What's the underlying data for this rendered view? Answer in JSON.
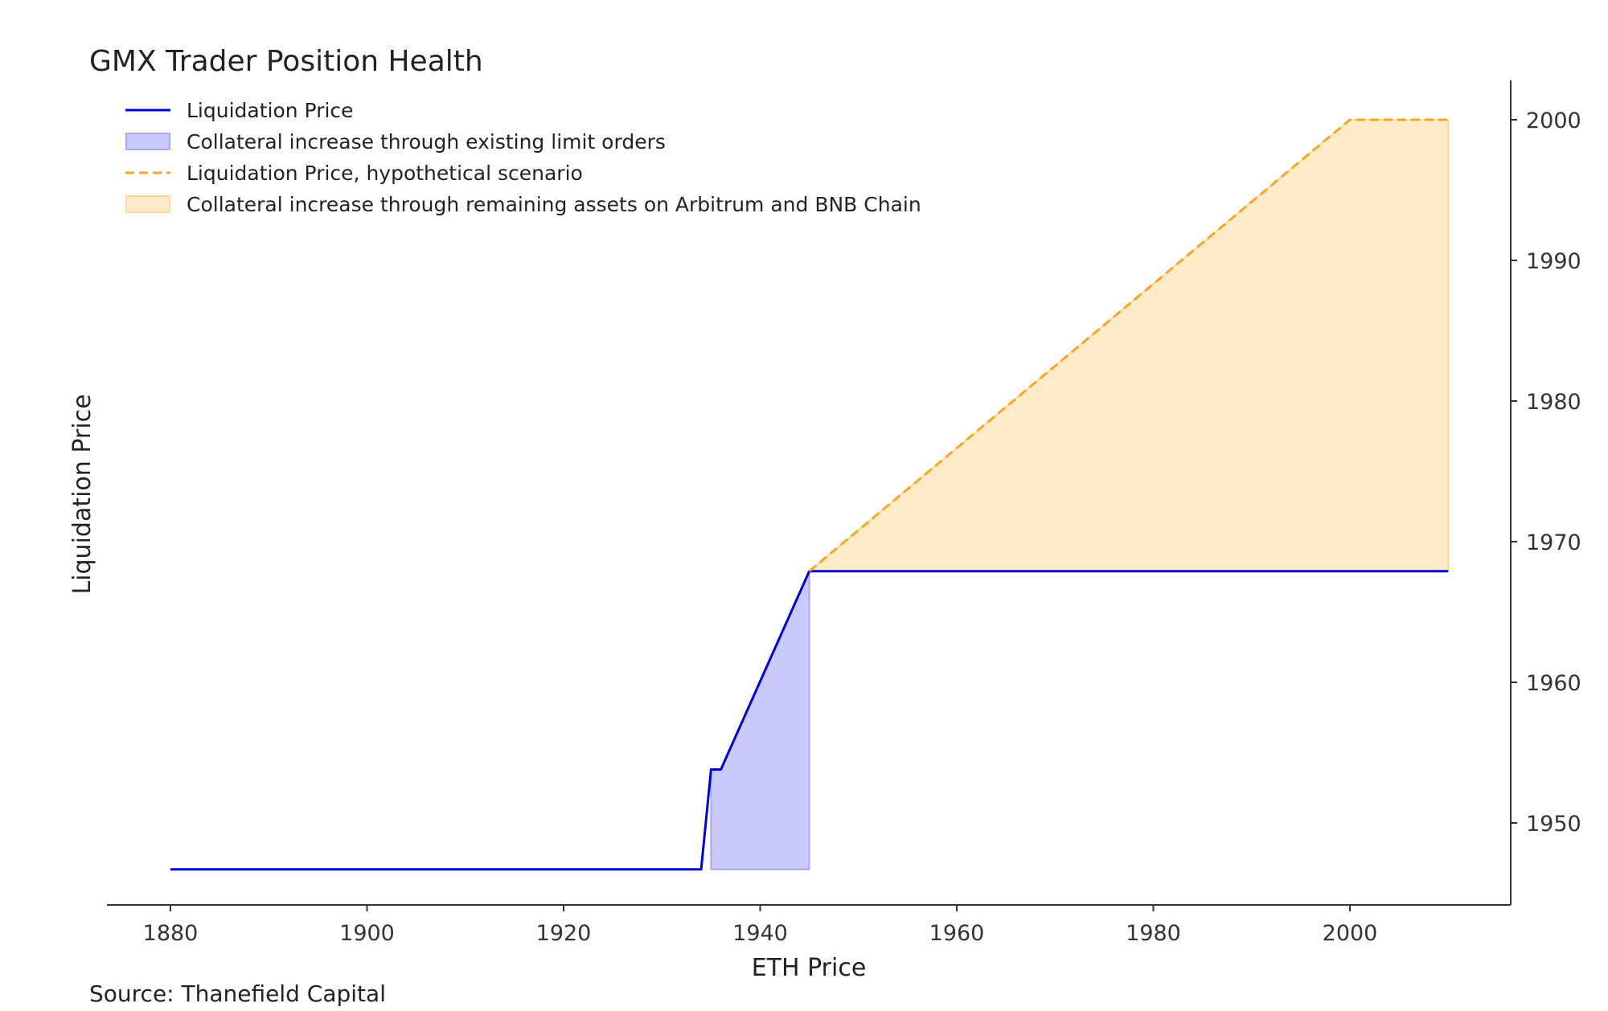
{
  "chart_data": {
    "type": "line",
    "title": "GMX Trader Position Health",
    "xlabel": "ETH Price",
    "ylabel": "Liquidation Price",
    "source": "Source: Thanefield Capital",
    "xlim": [
      1872,
      2016
    ],
    "ylim": [
      1944,
      2002.5
    ],
    "x_ticks": [
      1880,
      1900,
      1920,
      1940,
      1960,
      1980,
      2000
    ],
    "y_ticks": [
      1950,
      1960,
      1970,
      1980,
      1990,
      2000
    ],
    "y_axis_position": "right",
    "grid": false,
    "legend_position": "top-left",
    "legend": [
      {
        "label": "Liquidation Price",
        "kind": "line",
        "color": "#0000cc"
      },
      {
        "label": "Collateral increase through existing limit orders",
        "kind": "patch",
        "color": "#c9c9fb",
        "edge": "#a9a9f2"
      },
      {
        "label": "Liquidation Price, hypothetical scenario",
        "kind": "dashed",
        "color": "#f5a623"
      },
      {
        "label": "Collateral increase through remaining assets on Arbitrum and BNB Chain",
        "kind": "patch",
        "color": "#feecc8",
        "edge": "#fbd99a"
      }
    ],
    "series": [
      {
        "name": "Liquidation Price",
        "style": "solid",
        "color": "#0000cc",
        "points": [
          [
            1880,
            1946.7
          ],
          [
            1934,
            1946.7
          ],
          [
            1935,
            1953.8
          ],
          [
            1936,
            1953.8
          ],
          [
            1945,
            1967.9
          ],
          [
            2010,
            1967.9
          ]
        ]
      },
      {
        "name": "Liquidation Price, hypothetical scenario",
        "style": "dashed",
        "color": "#f5a623",
        "points": [
          [
            1945,
            1967.9
          ],
          [
            2000,
            2000
          ],
          [
            2010,
            2000
          ]
        ]
      }
    ],
    "fills": [
      {
        "name": "Collateral increase through existing limit orders",
        "color": "#c9c9fb",
        "edge": "#a9a9f2",
        "upper": [
          [
            1935,
            1953.8
          ],
          [
            1936,
            1953.8
          ],
          [
            1945,
            1967.9
          ]
        ],
        "lower": [
          [
            1935,
            1946.7
          ],
          [
            1945,
            1946.7
          ]
        ]
      },
      {
        "name": "Collateral increase through remaining assets on Arbitrum and BNB Chain",
        "color": "#feecc8",
        "edge": "#fbd99a",
        "upper": [
          [
            1945,
            1967.9
          ],
          [
            2000,
            2000
          ],
          [
            2010,
            2000
          ]
        ],
        "lower": [
          [
            1945,
            1967.9
          ],
          [
            2010,
            1967.9
          ]
        ]
      }
    ]
  }
}
